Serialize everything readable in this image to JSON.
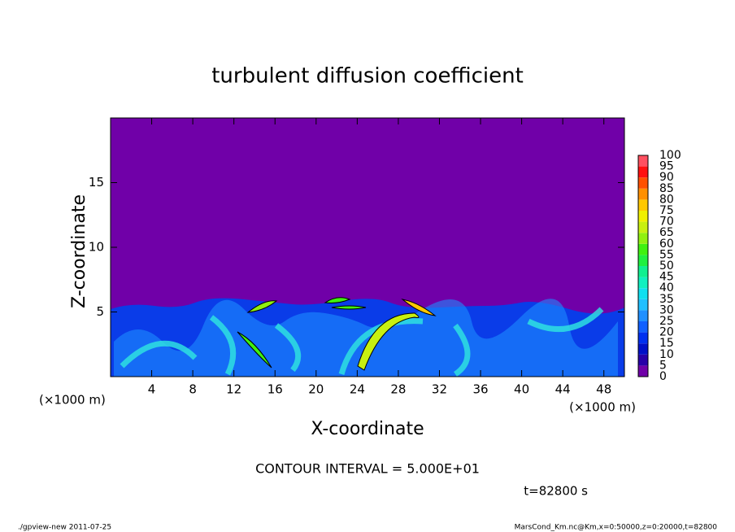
{
  "chart_data": {
    "type": "heatmap",
    "title": "turbulent diffusion coefficient",
    "x_label": "X-coordinate",
    "y_label": "Z-coordinate",
    "x_unit": "(×1000 m)",
    "y_unit": "(×1000 m)",
    "xlim": [
      0,
      50
    ],
    "ylim": [
      0,
      20
    ],
    "xticks": [
      4,
      8,
      12,
      16,
      20,
      24,
      28,
      32,
      36,
      40,
      44,
      48
    ],
    "yticks": [
      5,
      10,
      15
    ],
    "colorbar": {
      "levels": [
        0,
        5,
        10,
        15,
        20,
        25,
        30,
        35,
        40,
        45,
        50,
        55,
        60,
        65,
        70,
        75,
        80,
        85,
        90,
        95,
        100
      ],
      "colors": [
        "#7000a8",
        "#2800a8",
        "#0010c8",
        "#0030f0",
        "#1060ff",
        "#2090ff",
        "#20c0ff",
        "#10e0f0",
        "#10f0c0",
        "#10f090",
        "#20f040",
        "#40f010",
        "#90f010",
        "#c8f010",
        "#f0f000",
        "#ffc800",
        "#ff9000",
        "#ff5000",
        "#ff1010",
        "#ff5060"
      ]
    },
    "note": "CONTOUR INTERVAL = 5.000E+01",
    "time_label": "t=82800 s",
    "footer_left": "./gpview-new  2011-07-25",
    "footer_right": "MarsCond_Km.nc@Km,x=0:50000,z=0:20000,t=82800"
  }
}
